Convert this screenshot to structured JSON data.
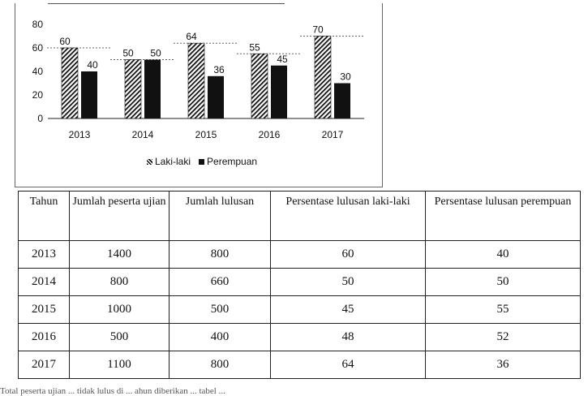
{
  "chart_data": {
    "type": "bar",
    "categories": [
      "2013",
      "2014",
      "2015",
      "2016",
      "2017"
    ],
    "series": [
      {
        "name": "Laki-laki",
        "values": [
          60,
          50,
          64,
          55,
          70
        ],
        "pattern": "hatched"
      },
      {
        "name": "Perempuan",
        "values": [
          40,
          50,
          36,
          45,
          30
        ],
        "pattern": "solid"
      }
    ],
    "yticks": [
      "0",
      "20",
      "40",
      "60",
      "80"
    ],
    "ylim": [
      0,
      80
    ],
    "xlabel": "",
    "ylabel": "",
    "title": "",
    "legend_position": "bottom",
    "colors": {
      "bar": "#111111",
      "background": "#ffffff"
    }
  },
  "legend": {
    "laki_label": "Laki-laki",
    "perempuan_label": "Perempuan"
  },
  "table": {
    "headers": [
      "Tahun",
      "Jumlah peserta ujian",
      "Jumlah lulusan",
      "Persentase lulusan laki-laki",
      "Persentase lulusan perempuan"
    ],
    "rows": [
      [
        "2013",
        "1400",
        "800",
        "60",
        "40"
      ],
      [
        "2014",
        "800",
        "660",
        "50",
        "50"
      ],
      [
        "2015",
        "1000",
        "500",
        "45",
        "55"
      ],
      [
        "2016",
        "500",
        "400",
        "48",
        "52"
      ],
      [
        "2017",
        "1100",
        "800",
        "64",
        "36"
      ]
    ]
  },
  "footer_text": "Total peserta ujian ... tidak lulus di ... ahun diberikan ... tabel ..."
}
